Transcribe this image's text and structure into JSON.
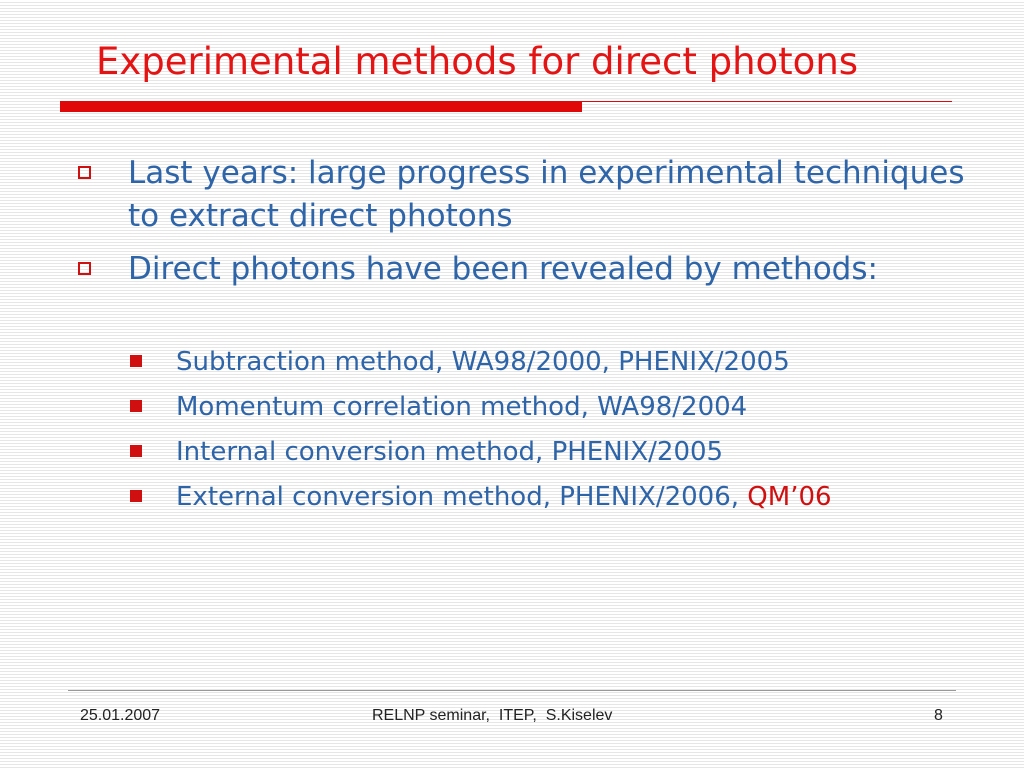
{
  "slide": {
    "title": "Experimental methods for direct photons",
    "bullets": [
      {
        "text": "Last years: large progress in experimental techniques to extract direct photons"
      },
      {
        "text": "Direct photons have been revealed by methods:"
      }
    ],
    "sub_bullets": [
      {
        "text": "Subtraction method, WA98/2000, PHENIX/2005"
      },
      {
        "text": "Momentum correlation method, WA98/2004"
      },
      {
        "text": "Internal conversion method, PHENIX/2005"
      },
      {
        "text": "External conversion method, PHENIX/2006, ",
        "highlight": "QM’06"
      }
    ]
  },
  "footer": {
    "date": "25.01.2007",
    "center": "RELNP seminar,  ITEP,  S.Kiselev",
    "page_number": "8"
  },
  "colors": {
    "title": "#e41414",
    "body_text": "#2e64a8",
    "bullet": "#d01010",
    "highlight": "#d01010"
  },
  "icons": {
    "level1_bullet": "hollow-square-icon",
    "level2_bullet": "filled-square-icon"
  }
}
